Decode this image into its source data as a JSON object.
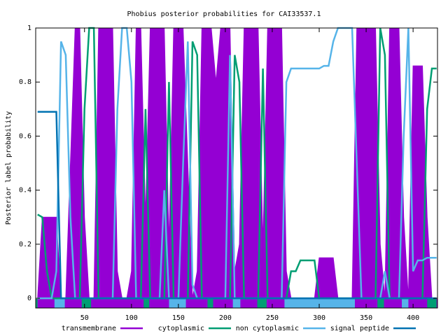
{
  "chart_data": {
    "type": "line",
    "title": "Phobius posterior probabilities for CAI33537.1",
    "y_label": "Posterior label probability",
    "xlim": [
      -2,
      426
    ],
    "ylim": [
      -0.036,
      1
    ],
    "xticks": [
      50,
      100,
      150,
      200,
      250,
      300,
      350,
      400
    ],
    "yticks": [
      0,
      0.2,
      0.4,
      0.6,
      0.8,
      1
    ],
    "x": [
      0,
      5,
      10,
      15,
      20,
      25,
      30,
      35,
      40,
      45,
      50,
      55,
      60,
      65,
      70,
      75,
      80,
      85,
      90,
      95,
      100,
      105,
      110,
      115,
      120,
      125,
      130,
      135,
      140,
      145,
      150,
      155,
      160,
      165,
      170,
      175,
      180,
      185,
      190,
      195,
      200,
      205,
      210,
      215,
      220,
      225,
      230,
      235,
      240,
      245,
      250,
      255,
      260,
      265,
      270,
      275,
      280,
      285,
      290,
      295,
      300,
      305,
      310,
      315,
      320,
      325,
      330,
      335,
      340,
      345,
      350,
      355,
      360,
      365,
      370,
      375,
      380,
      385,
      390,
      395,
      400,
      405,
      410,
      415,
      420,
      425
    ],
    "series": [
      {
        "name": "transmembrane",
        "color": "#9400d3",
        "fill": true,
        "values": [
          0,
          0.3,
          0.3,
          0.3,
          0.3,
          0,
          0,
          0.5,
          1,
          1,
          0.3,
          0,
          0,
          1,
          1,
          1,
          1,
          0.1,
          0,
          0,
          0.1,
          1,
          1,
          0.3,
          1,
          1,
          1,
          1,
          0.2,
          1,
          1,
          1,
          0.5,
          0,
          0.1,
          1,
          1,
          1,
          0.8,
          1,
          1,
          1,
          0.1,
          0.2,
          1,
          1,
          1,
          1,
          0.2,
          1,
          1,
          1,
          1,
          0.1,
          0,
          0,
          0,
          0,
          0,
          0,
          0.15,
          0.15,
          0.15,
          0.15,
          0,
          0,
          0,
          0,
          1,
          1,
          1,
          1,
          1,
          0.2,
          0,
          1,
          1,
          1,
          0.3,
          0,
          0.86,
          0.86,
          0.86,
          0.3,
          0,
          0
        ]
      },
      {
        "name": "cytoplasmic",
        "color": "#009e73",
        "values": [
          0.31,
          0.3,
          0.1,
          0,
          0,
          0,
          0,
          0,
          0,
          0,
          0.7,
          1,
          1,
          0,
          0,
          0,
          0,
          0,
          0,
          0,
          0,
          0,
          0,
          0.7,
          0,
          0,
          0,
          0,
          0.8,
          0,
          0,
          0,
          0,
          0.95,
          0.9,
          0,
          0,
          0,
          0,
          0,
          0,
          0,
          0.9,
          0.8,
          0,
          0,
          0,
          0,
          0.85,
          0,
          0,
          0,
          0,
          0,
          0.1,
          0.1,
          0.14,
          0.14,
          0.14,
          0.14,
          0,
          0,
          0,
          0,
          0,
          0,
          0,
          0,
          0,
          0,
          0,
          0,
          0,
          1,
          0.9,
          0,
          0,
          0,
          0,
          0,
          0,
          0,
          0,
          0.7,
          0.85,
          0.85
        ]
      },
      {
        "name": "non cytoplasmic",
        "color": "#56b4e9",
        "values": [
          0,
          0,
          0,
          0,
          0.1,
          0.95,
          0.9,
          0.3,
          0,
          0,
          0,
          0,
          0,
          0,
          0,
          0,
          0,
          0.7,
          1,
          1,
          0.8,
          0,
          0,
          0,
          0,
          0,
          0,
          0.4,
          0,
          0,
          0,
          0.5,
          0.95,
          0.05,
          0,
          0,
          0,
          0,
          0,
          0,
          0,
          0.9,
          0,
          0,
          0,
          0,
          0,
          0,
          0,
          0,
          0,
          0,
          0,
          0.8,
          0.85,
          0.85,
          0.85,
          0.85,
          0.85,
          0.85,
          0.85,
          0.86,
          0.86,
          0.95,
          1,
          1,
          1,
          1,
          0.5,
          0,
          0,
          0,
          0,
          0,
          0.1,
          0,
          0,
          0,
          0.6,
          1,
          0.1,
          0.14,
          0.14,
          0.15,
          0.15,
          0.15
        ]
      },
      {
        "name": "signal peptide",
        "color": "#0072b2",
        "values": [
          0.69,
          0.69,
          0.69,
          0.69,
          0.69,
          0,
          0,
          0,
          0,
          0,
          0,
          0,
          0,
          0,
          0,
          0,
          0,
          0,
          0,
          0,
          0,
          0,
          0,
          0,
          0,
          0,
          0,
          0,
          0,
          0,
          0,
          0,
          0,
          0,
          0,
          0,
          0,
          0,
          0,
          0,
          0,
          0,
          0,
          0,
          0,
          0,
          0,
          0,
          0,
          0,
          0,
          0,
          0,
          0,
          0,
          0,
          0,
          0,
          0,
          0,
          0,
          0,
          0,
          0,
          0,
          0,
          0,
          0,
          0,
          0,
          0,
          0,
          0,
          0,
          0,
          0,
          0,
          0,
          0,
          0,
          0,
          0,
          0,
          0,
          0,
          0
        ]
      }
    ],
    "topology_base_color": "#9400d3",
    "topology": [
      {
        "start": -2,
        "end": 0,
        "color": "#009e73"
      },
      {
        "start": 18,
        "end": 29,
        "color": "#56b4e9"
      },
      {
        "start": 47,
        "end": 57,
        "color": "#009e73"
      },
      {
        "start": 113,
        "end": 119,
        "color": "#009e73"
      },
      {
        "start": 140,
        "end": 158,
        "color": "#56b4e9"
      },
      {
        "start": 181,
        "end": 187,
        "color": "#009e73"
      },
      {
        "start": 208,
        "end": 216,
        "color": "#56b4e9"
      },
      {
        "start": 234,
        "end": 244,
        "color": "#009e73"
      },
      {
        "start": 263,
        "end": 338,
        "color": "#56b4e9"
      },
      {
        "start": 362,
        "end": 369,
        "color": "#009e73"
      },
      {
        "start": 388,
        "end": 395,
        "color": "#56b4e9"
      },
      {
        "start": 415,
        "end": 425,
        "color": "#009e73"
      }
    ]
  }
}
